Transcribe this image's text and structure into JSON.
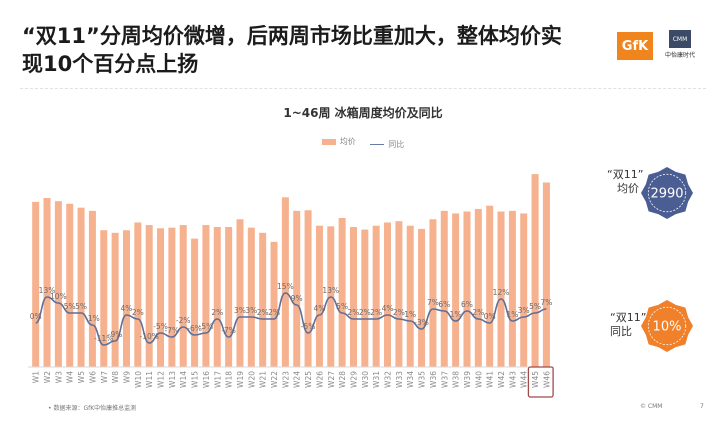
{
  "slide": {
    "title": "“双11”分周均价微增，后两周市场比重加大，整体均价实现10个百分点上扬",
    "logo_left": "GfK",
    "logo_right_mark": "CMM",
    "logo_right_text": "中怡康时代"
  },
  "callouts": {
    "price_label_line1": "“双11”",
    "price_label_line2": "均价",
    "price_value": "2990",
    "yoy_label_line1": "“双11”",
    "yoy_label_line2": "同比",
    "yoy_value": "10%"
  },
  "footer": {
    "source": "•   数据来源：GfK中怡康推总监测",
    "copyright": "© CMM",
    "page": "7"
  },
  "colors": {
    "bar": "#f6b18f",
    "line": "#5e6f99",
    "price_badge": "#4b5e93",
    "yoy_badge": "#f0802a",
    "highlight_box": "#a04a4a"
  },
  "chart_data": {
    "type": "bar",
    "title": "1~46周 冰箱周度均价及同比",
    "legend": [
      "均价",
      "同比"
    ],
    "legend_position": "top-center",
    "grid": false,
    "categories": [
      "W1",
      "W2",
      "W3",
      "W4",
      "W5",
      "W6",
      "W7",
      "W8",
      "W9",
      "W10",
      "W11",
      "W12",
      "W13",
      "W14",
      "W15",
      "W16",
      "W17",
      "W18",
      "W19",
      "W20",
      "W21",
      "W22",
      "W23",
      "W24",
      "W25",
      "W26",
      "W27",
      "W28",
      "W29",
      "W30",
      "W31",
      "W32",
      "W33",
      "W34",
      "W35",
      "W36",
      "W37",
      "W38",
      "W39",
      "W40",
      "W41",
      "W42",
      "W43",
      "W44",
      "W45",
      "W46"
    ],
    "series": [
      {
        "name": "均价",
        "type": "bar",
        "axis": "left",
        "values": [
          2560,
          2620,
          2570,
          2530,
          2470,
          2420,
          2120,
          2080,
          2120,
          2240,
          2200,
          2150,
          2160,
          2200,
          1990,
          2200,
          2170,
          2170,
          2290,
          2160,
          2080,
          1940,
          2630,
          2420,
          2430,
          2190,
          2180,
          2310,
          2170,
          2130,
          2190,
          2240,
          2260,
          2190,
          2140,
          2290,
          2420,
          2380,
          2410,
          2450,
          2500,
          2410,
          2420,
          2380,
          2990,
          2860
        ]
      },
      {
        "name": "同比",
        "type": "line",
        "axis": "right",
        "values": [
          0,
          13,
          10,
          5,
          5,
          -1,
          -11,
          -9,
          4,
          2,
          -10,
          -5,
          -7,
          -2,
          -6,
          -5,
          2,
          -7,
          3,
          3,
          2,
          2,
          15,
          9,
          -5,
          4,
          13,
          5,
          2,
          2,
          2,
          4,
          2,
          1,
          -3,
          7,
          6,
          1,
          6,
          2,
          0,
          12,
          1,
          3,
          5,
          7
        ],
        "data_labels": [
          "0%",
          "13%",
          "10%",
          "5%",
          "5%",
          "-1%",
          "-11%",
          "-9%",
          "4%",
          "2%",
          "-10%",
          "-5%",
          "-7%",
          "-2%",
          "-6%",
          "-5%",
          "2%",
          "-7%",
          "3%",
          "3%",
          "2%",
          "2%",
          "15%",
          "9%",
          "-5%",
          "4%",
          "13%",
          "5%",
          "2%",
          "2%",
          "2%",
          "4%",
          "2%",
          "1%",
          "-3%",
          "7%",
          "6%",
          "1%",
          "6%",
          "2%",
          "0%",
          "12%",
          "1%",
          "3%",
          "5%",
          "7%"
        ]
      }
    ],
    "highlight_categories": [
      "W45",
      "W46"
    ]
  }
}
